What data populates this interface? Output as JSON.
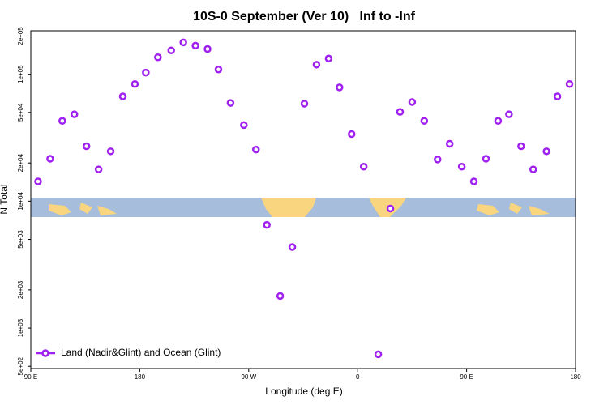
{
  "chart_data": {
    "type": "scatter",
    "title": "10S-0 September (Ver 10)   Inf to -Inf",
    "xlabel": "Longitude (deg E)",
    "ylabel": "N Total",
    "ylog": true,
    "legend_position": "bottomleft",
    "xlim": [
      90,
      540
    ],
    "ylim": [
      480,
      220000
    ],
    "xticks": [
      {
        "value": 90,
        "label": "90 E"
      },
      {
        "value": 180,
        "label": "180"
      },
      {
        "value": 270,
        "label": "90 W"
      },
      {
        "value": 360,
        "label": "0"
      },
      {
        "value": 450,
        "label": "90 E"
      },
      {
        "value": 540,
        "label": "180"
      }
    ],
    "yticks": [
      {
        "value": 500,
        "label": "5e+02"
      },
      {
        "value": 1000,
        "label": "1e+03"
      },
      {
        "value": 2000,
        "label": "2e+03"
      },
      {
        "value": 5000,
        "label": "5e+03"
      },
      {
        "value": 10000,
        "label": "1e+04"
      },
      {
        "value": 20000,
        "label": "2e+04"
      },
      {
        "value": 50000,
        "label": "5e+04"
      },
      {
        "value": 100000,
        "label": "1e+05"
      },
      {
        "value": 200000,
        "label": "2e+05"
      }
    ],
    "series": [
      {
        "name": "Land (Nadir&Glint) and Ocean (Glint)",
        "color": "#a020f0",
        "x": [
          96,
          106,
          116,
          126,
          136,
          146,
          156,
          166,
          176,
          185,
          195,
          206,
          216,
          226,
          236,
          245,
          255,
          266,
          276,
          285,
          296,
          306,
          316,
          326,
          336,
          345,
          355,
          365,
          377,
          387,
          395,
          405,
          415,
          426,
          436,
          446,
          456,
          466,
          476,
          485,
          495,
          505,
          516,
          525,
          535
        ],
        "values": [
          14300,
          21600,
          42900,
          48300,
          27100,
          17800,
          24700,
          66900,
          83700,
          103000,
          136000,
          154000,
          178000,
          168000,
          158000,
          109000,
          59400,
          39800,
          25500,
          6500,
          1790,
          4350,
          58600,
          119000,
          133000,
          78800,
          33800,
          18700,
          622,
          8750,
          50500,
          60400,
          42900,
          21300,
          28300,
          18700,
          14300,
          21600,
          42900,
          48300,
          27100,
          17800,
          24700,
          66900,
          83700
        ]
      }
    ]
  }
}
